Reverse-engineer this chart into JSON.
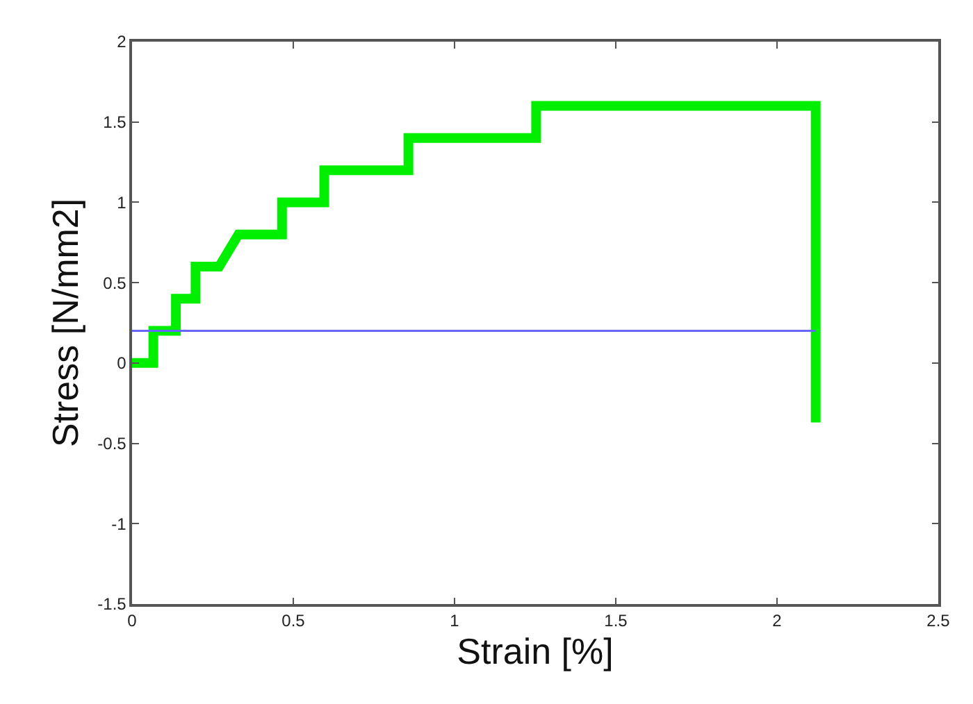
{
  "chart_data": {
    "type": "line",
    "xlabel": "Strain [%]",
    "ylabel": "Stress [N/mm2]",
    "xlim": [
      0,
      2.5
    ],
    "xticks": [
      0,
      0.5,
      1,
      1.5,
      2,
      2.5
    ],
    "ylim": [
      -1.5,
      2
    ],
    "yticks": [
      -1.5,
      -1,
      -0.5,
      0,
      0.5,
      1,
      1.5,
      2
    ],
    "marker": "none",
    "line_style": "solid",
    "series": [
      {
        "color": "#00ee00",
        "x": [
          0,
          0.066,
          0.066,
          0.136,
          0.136,
          0.197,
          0.197,
          0.27,
          0.33,
          0.465,
          0.465,
          0.596,
          0.596,
          0.857,
          0.857,
          1.253,
          1.253,
          2.12,
          2.12
        ],
        "values": [
          0,
          0,
          0.2,
          0.2,
          0.4,
          0.4,
          0.6,
          0.6,
          0.8,
          0.8,
          1.0,
          1.0,
          1.2,
          1.2,
          1.4,
          1.4,
          1.6,
          1.6,
          -0.37
        ]
      },
      {
        "color": "#6666ff",
        "x": [
          0,
          2.12
        ],
        "values": [
          0.2,
          0.2
        ]
      }
    ]
  }
}
